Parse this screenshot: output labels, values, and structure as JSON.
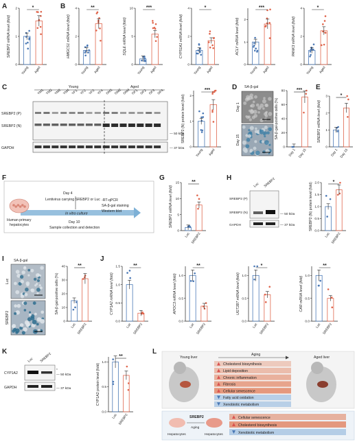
{
  "colors": {
    "young": "#4a78b5",
    "aged": "#e0664d",
    "luc": "#4a78b5",
    "srebp2": "#e0664d",
    "up_arrow": "#d9534f",
    "down_arrow": "#4a78b5",
    "bar_up": "#e07a55",
    "bar_down": "#a9c6e3",
    "timeline": "#7db0d6"
  },
  "panels": {
    "A": {
      "letter": "A",
      "ylabel": "SREBP2 mRNA level (fold)",
      "groups": [
        "Young",
        "Aged"
      ],
      "sig": "*",
      "ylim": [
        0,
        2
      ],
      "yticks": [
        "0",
        "1",
        "2"
      ],
      "chart_data": {
        "type": "bar",
        "categories": [
          "Young",
          "Aged"
        ],
        "values": [
          1.0,
          1.55
        ],
        "ylim": [
          0,
          2
        ]
      }
    },
    "B": {
      "letter": "B",
      "sig_list": [
        "**",
        "***",
        "*",
        "***",
        "*"
      ],
      "charts": [
        {
          "ylabel": "HMGCS1 mRNA level (fold)",
          "sig": "**",
          "yticks": [
            "0",
            "2",
            "4"
          ],
          "chart_data": {
            "type": "bar",
            "categories": [
              "Young",
              "Aged"
            ],
            "values": [
              1.0,
              2.9
            ],
            "ylim": [
              0,
              4
            ]
          }
        },
        {
          "ylabel": "SQLE mRNA level (fold)",
          "sig": "***",
          "yticks": [
            "0",
            "5",
            "10"
          ],
          "chart_data": {
            "type": "bar",
            "categories": [
              "Young",
              "Aged"
            ],
            "values": [
              1.0,
              5.4
            ],
            "ylim": [
              0,
              10
            ]
          }
        },
        {
          "ylabel": "CYP51A1 mRNA level (fold)",
          "sig": "*",
          "yticks": [
            "0",
            "2",
            "4"
          ],
          "chart_data": {
            "type": "bar",
            "categories": [
              "Young",
              "Aged"
            ],
            "values": [
              1.0,
              1.7
            ],
            "ylim": [
              0,
              4
            ]
          }
        },
        {
          "ylabel": "ACLY mRNA level (fold)",
          "sig": "***",
          "yticks": [
            "0",
            "1",
            "2"
          ],
          "chart_data": {
            "type": "bar",
            "categories": [
              "Young",
              "Aged"
            ],
            "values": [
              1.0,
              1.8
            ],
            "ylim": [
              0,
              2.5
            ]
          }
        },
        {
          "ylabel": "PANK3 mRNA level (fold)",
          "sig": "*",
          "yticks": [
            "0",
            "2",
            "4"
          ],
          "chart_data": {
            "type": "bar",
            "categories": [
              "Young",
              "Aged"
            ],
            "values": [
              1.0,
              2.4
            ],
            "ylim": [
              0,
              4
            ]
          }
        }
      ]
    },
    "C": {
      "letter": "C",
      "young_label": "Young",
      "aged_label": "Aged",
      "young_lanes": [
        "YM1",
        "YM2",
        "YM3",
        "YM4",
        "YF1",
        "YF2",
        "YF3",
        "YF4"
      ],
      "aged_lanes": [
        "OM1",
        "OM2",
        "OM4",
        "OF1",
        "OF2",
        "OF3",
        "OF4"
      ],
      "row_labels": [
        "SREBP2 (P)",
        "SREBP2 (N)",
        "GAPDH"
      ],
      "mw": [
        "50 kDa",
        "37 kDa"
      ],
      "quant_ylabel": "SREBP2 (N) protein level (fold)",
      "sig": "***",
      "yticks": [
        "0",
        "1",
        "2"
      ],
      "chart_data": {
        "type": "bar",
        "categories": [
          "Young",
          "Aged"
        ],
        "values": [
          1.0,
          1.65
        ],
        "ylim": [
          0,
          2.2
        ]
      }
    },
    "D": {
      "letter": "D",
      "title": "SA-β-gal",
      "day1": "Day 1",
      "day15": "Day 15",
      "ylabel": "SA-β-gal-positive cells (%)",
      "sig": "***",
      "yticks": [
        "0",
        "20",
        "40",
        "60",
        "80"
      ],
      "chart_data": {
        "type": "bar",
        "categories": [
          "Day 1",
          "Day 15"
        ],
        "values": [
          0,
          71
        ],
        "ylim": [
          0,
          80
        ]
      }
    },
    "E": {
      "letter": "E",
      "ylabel": "SREBP2 mRNA level (fold)",
      "sig": "*",
      "yticks": [
        "0",
        "1",
        "2",
        "3"
      ],
      "chart_data": {
        "type": "bar",
        "categories": [
          "Day 1",
          "Day 15"
        ],
        "values": [
          1.0,
          2.3
        ],
        "ylim": [
          0,
          3
        ]
      }
    },
    "F": {
      "letter": "F",
      "day4": "Day 4",
      "lenti": "Lentivirus carrying SREBP2 or Luc",
      "invitro": "In vitro culture",
      "cells": "Human primary hepatocytes",
      "readouts": [
        "RT-qPCR",
        "SA-β-gal staining",
        "Western blot"
      ],
      "day10": "Day 10",
      "collection": "Sample collection and detection"
    },
    "G": {
      "letter": "G",
      "ylabel": "SREBP2 mRNA level (fold)",
      "sig": "**",
      "yticks": [
        "0",
        "5",
        "10",
        "15"
      ],
      "chart_data": {
        "type": "bar",
        "categories": [
          "Luc",
          "SREBP2"
        ],
        "values": [
          1.0,
          8.0
        ],
        "ylim": [
          0,
          15
        ]
      }
    },
    "H": {
      "letter": "H",
      "lanes": [
        "Luc",
        "SREBP2"
      ],
      "row_labels": [
        "SREBP2 (P)",
        "SREBP2 (N)",
        "GAPDH"
      ],
      "mw": [
        "50 kDa",
        "37 kDa"
      ],
      "ylabel": "SREBP2 (N) protein level (fold)",
      "sig": "*",
      "yticks": [
        "0.0",
        "0.5",
        "1.0",
        "1.5",
        "2.0"
      ],
      "chart_data": {
        "type": "bar",
        "categories": [
          "Luc",
          "SREBP2"
        ],
        "values": [
          1.0,
          1.7
        ],
        "ylim": [
          0,
          2
        ]
      }
    },
    "I": {
      "letter": "I",
      "title": "SA-β-gal",
      "luc": "Luc",
      "srebp2": "SREBP2",
      "ylabel": "SA-β-gal-positive cells (%)",
      "sig": "**",
      "yticks": [
        "0",
        "10",
        "20",
        "30",
        "40"
      ],
      "chart_data": {
        "type": "bar",
        "categories": [
          "Luc",
          "SREBP2"
        ],
        "values": [
          15,
          31
        ],
        "ylim": [
          0,
          40
        ]
      }
    },
    "J": {
      "letter": "J",
      "charts": [
        {
          "ylabel": "CYP1A2 mRNA level (fold)",
          "sig": "**",
          "yticks": [
            "0.0",
            "0.5",
            "1.0",
            "1.5"
          ],
          "chart_data": {
            "type": "bar",
            "categories": [
              "Luc",
              "SREBP2"
            ],
            "values": [
              1.0,
              0.22
            ],
            "ylim": [
              0,
              1.5
            ]
          }
        },
        {
          "ylabel": "APOC3 mRNA level (fold)",
          "sig": "**",
          "yticks": [
            "0.0",
            "0.5",
            "1.0"
          ],
          "chart_data": {
            "type": "bar",
            "categories": [
              "Luc",
              "SREBP2"
            ],
            "values": [
              1.0,
              0.33
            ],
            "ylim": [
              0,
              1.2
            ]
          }
        },
        {
          "ylabel": "UGT2B7 mRNA level (fold)",
          "sig": "*",
          "yticks": [
            "0.0",
            "0.5",
            "1.0"
          ],
          "chart_data": {
            "type": "bar",
            "categories": [
              "Luc",
              "SREBP2"
            ],
            "values": [
              1.0,
              0.58
            ],
            "ylim": [
              0,
              1.2
            ]
          }
        },
        {
          "ylabel": "CAR mRNA level (fold)",
          "sig": "**",
          "yticks": [
            "0.0",
            "0.5",
            "1.0"
          ],
          "chart_data": {
            "type": "bar",
            "categories": [
              "Luc",
              "SREBP2"
            ],
            "values": [
              1.0,
              0.5
            ],
            "ylim": [
              0,
              1.2
            ]
          }
        }
      ]
    },
    "K": {
      "letter": "K",
      "lanes": [
        "Luc",
        "SREBP2"
      ],
      "row_labels": [
        "CYP1A2",
        "GAPDH"
      ],
      "mw": [
        "50 kDa",
        "37 kDa"
      ],
      "star": "*",
      "ylabel": "CYP1A2 protein level (fold)",
      "sig": "**",
      "yticks": [
        "0.0",
        "0.5",
        "1.0"
      ],
      "chart_data": {
        "type": "bar",
        "categories": [
          "Luc",
          "SREBP2"
        ],
        "values": [
          1.0,
          0.73
        ],
        "ylim": [
          0,
          1.1
        ]
      }
    },
    "L": {
      "letter": "L",
      "young": "Young liver",
      "aged": "Aged liver",
      "aging": "Aging",
      "changes": [
        {
          "dir": "up",
          "text": "Cholesterol biosynthesis"
        },
        {
          "dir": "up",
          "text": "Lipid deposition"
        },
        {
          "dir": "up",
          "text": "Chronic inflammation"
        },
        {
          "dir": "up",
          "text": "Fibrosis"
        },
        {
          "dir": "up",
          "text": "Cellular senescence"
        },
        {
          "dir": "down",
          "text": "Fatty acid oxidation"
        },
        {
          "dir": "down",
          "text": "Xenobiotic metabolism"
        }
      ],
      "bottom_srebp2": "SREBP2",
      "bottom_aging": "Aging",
      "hep1": "Hepatocytes",
      "hep2": "Hepatocytes",
      "bottom_changes": [
        {
          "dir": "up",
          "text": "Cellular senescence"
        },
        {
          "dir": "up",
          "text": "Cholesterol biosynthesis"
        },
        {
          "dir": "down",
          "text": "Xenobiotic metabolism"
        }
      ]
    }
  }
}
